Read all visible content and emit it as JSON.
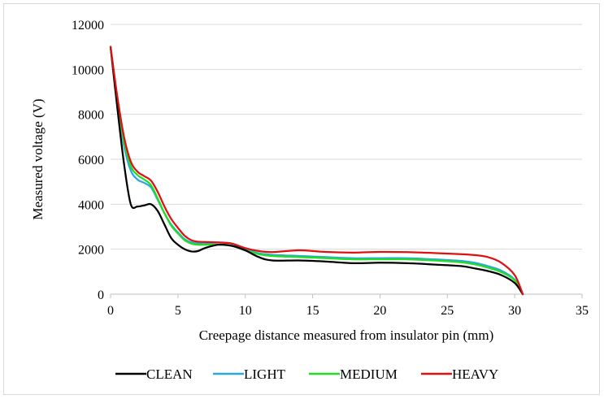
{
  "chart_data": {
    "type": "line",
    "title": "",
    "xlabel": "Creepage distance measured from insulator pin (mm)",
    "ylabel": "Measured voltage (V)",
    "xlim": [
      0,
      35
    ],
    "ylim": [
      0,
      12000
    ],
    "xticks": [
      0,
      5,
      10,
      15,
      20,
      25,
      30,
      35
    ],
    "yticks": [
      0,
      2000,
      4000,
      6000,
      8000,
      10000,
      12000
    ],
    "grid": "horizontal",
    "legend_position": "bottom",
    "series": [
      {
        "name": "CLEAN",
        "color": "#000000",
        "x": [
          0,
          0.5,
          1,
          1.5,
          2,
          2.5,
          3,
          3.5,
          4,
          4.5,
          5,
          5.5,
          6,
          6.5,
          7,
          8,
          9,
          10,
          11,
          12,
          14,
          16,
          18,
          20,
          22,
          24,
          26,
          27,
          28,
          29,
          30,
          30.6
        ],
        "y": [
          11000,
          8300,
          5800,
          4000,
          3900,
          3950,
          4000,
          3700,
          3100,
          2500,
          2200,
          2000,
          1900,
          1920,
          2050,
          2200,
          2150,
          1950,
          1650,
          1500,
          1500,
          1450,
          1380,
          1400,
          1380,
          1320,
          1250,
          1150,
          1030,
          850,
          500,
          0
        ]
      },
      {
        "name": "LIGHT",
        "color": "#2aa8e0",
        "x": [
          0,
          0.5,
          1,
          1.5,
          2,
          2.5,
          3,
          3.5,
          4,
          4.5,
          5,
          5.5,
          6,
          6.5,
          7,
          8,
          9,
          10,
          11,
          12,
          14,
          16,
          18,
          20,
          22,
          24,
          26,
          27,
          28,
          29,
          30,
          30.6
        ],
        "y": [
          11000,
          8600,
          6600,
          5500,
          5100,
          4950,
          4750,
          4200,
          3600,
          3100,
          2750,
          2450,
          2300,
          2250,
          2250,
          2300,
          2250,
          2000,
          1820,
          1750,
          1700,
          1650,
          1600,
          1600,
          1600,
          1550,
          1480,
          1400,
          1250,
          1050,
          650,
          0
        ]
      },
      {
        "name": "MEDIUM",
        "color": "#22dd22",
        "x": [
          0,
          0.5,
          1,
          1.5,
          2,
          2.5,
          3,
          3.5,
          4,
          4.5,
          5,
          5.5,
          6,
          6.5,
          7,
          8,
          9,
          10,
          11,
          12,
          14,
          16,
          18,
          20,
          22,
          24,
          26,
          27,
          28,
          29,
          30,
          30.6
        ],
        "y": [
          11000,
          8700,
          6800,
          5700,
          5300,
          5100,
          4850,
          4250,
          3600,
          3050,
          2700,
          2400,
          2250,
          2200,
          2200,
          2200,
          2150,
          1950,
          1780,
          1700,
          1650,
          1600,
          1550,
          1550,
          1550,
          1500,
          1420,
          1330,
          1180,
          980,
          620,
          0
        ]
      },
      {
        "name": "HEAVY",
        "color": "#dd1111",
        "x": [
          0,
          0.5,
          1,
          1.5,
          2,
          2.5,
          3,
          3.5,
          4,
          4.5,
          5,
          5.5,
          6,
          6.5,
          7,
          8,
          9,
          10,
          11,
          12,
          14,
          16,
          18,
          20,
          22,
          24,
          26,
          27,
          28,
          29,
          30,
          30.6
        ],
        "y": [
          11000,
          8800,
          7000,
          5900,
          5450,
          5250,
          5050,
          4550,
          3900,
          3350,
          2950,
          2600,
          2400,
          2330,
          2320,
          2300,
          2250,
          2050,
          1920,
          1870,
          1950,
          1880,
          1850,
          1880,
          1870,
          1830,
          1780,
          1740,
          1650,
          1400,
          850,
          0
        ]
      }
    ]
  }
}
